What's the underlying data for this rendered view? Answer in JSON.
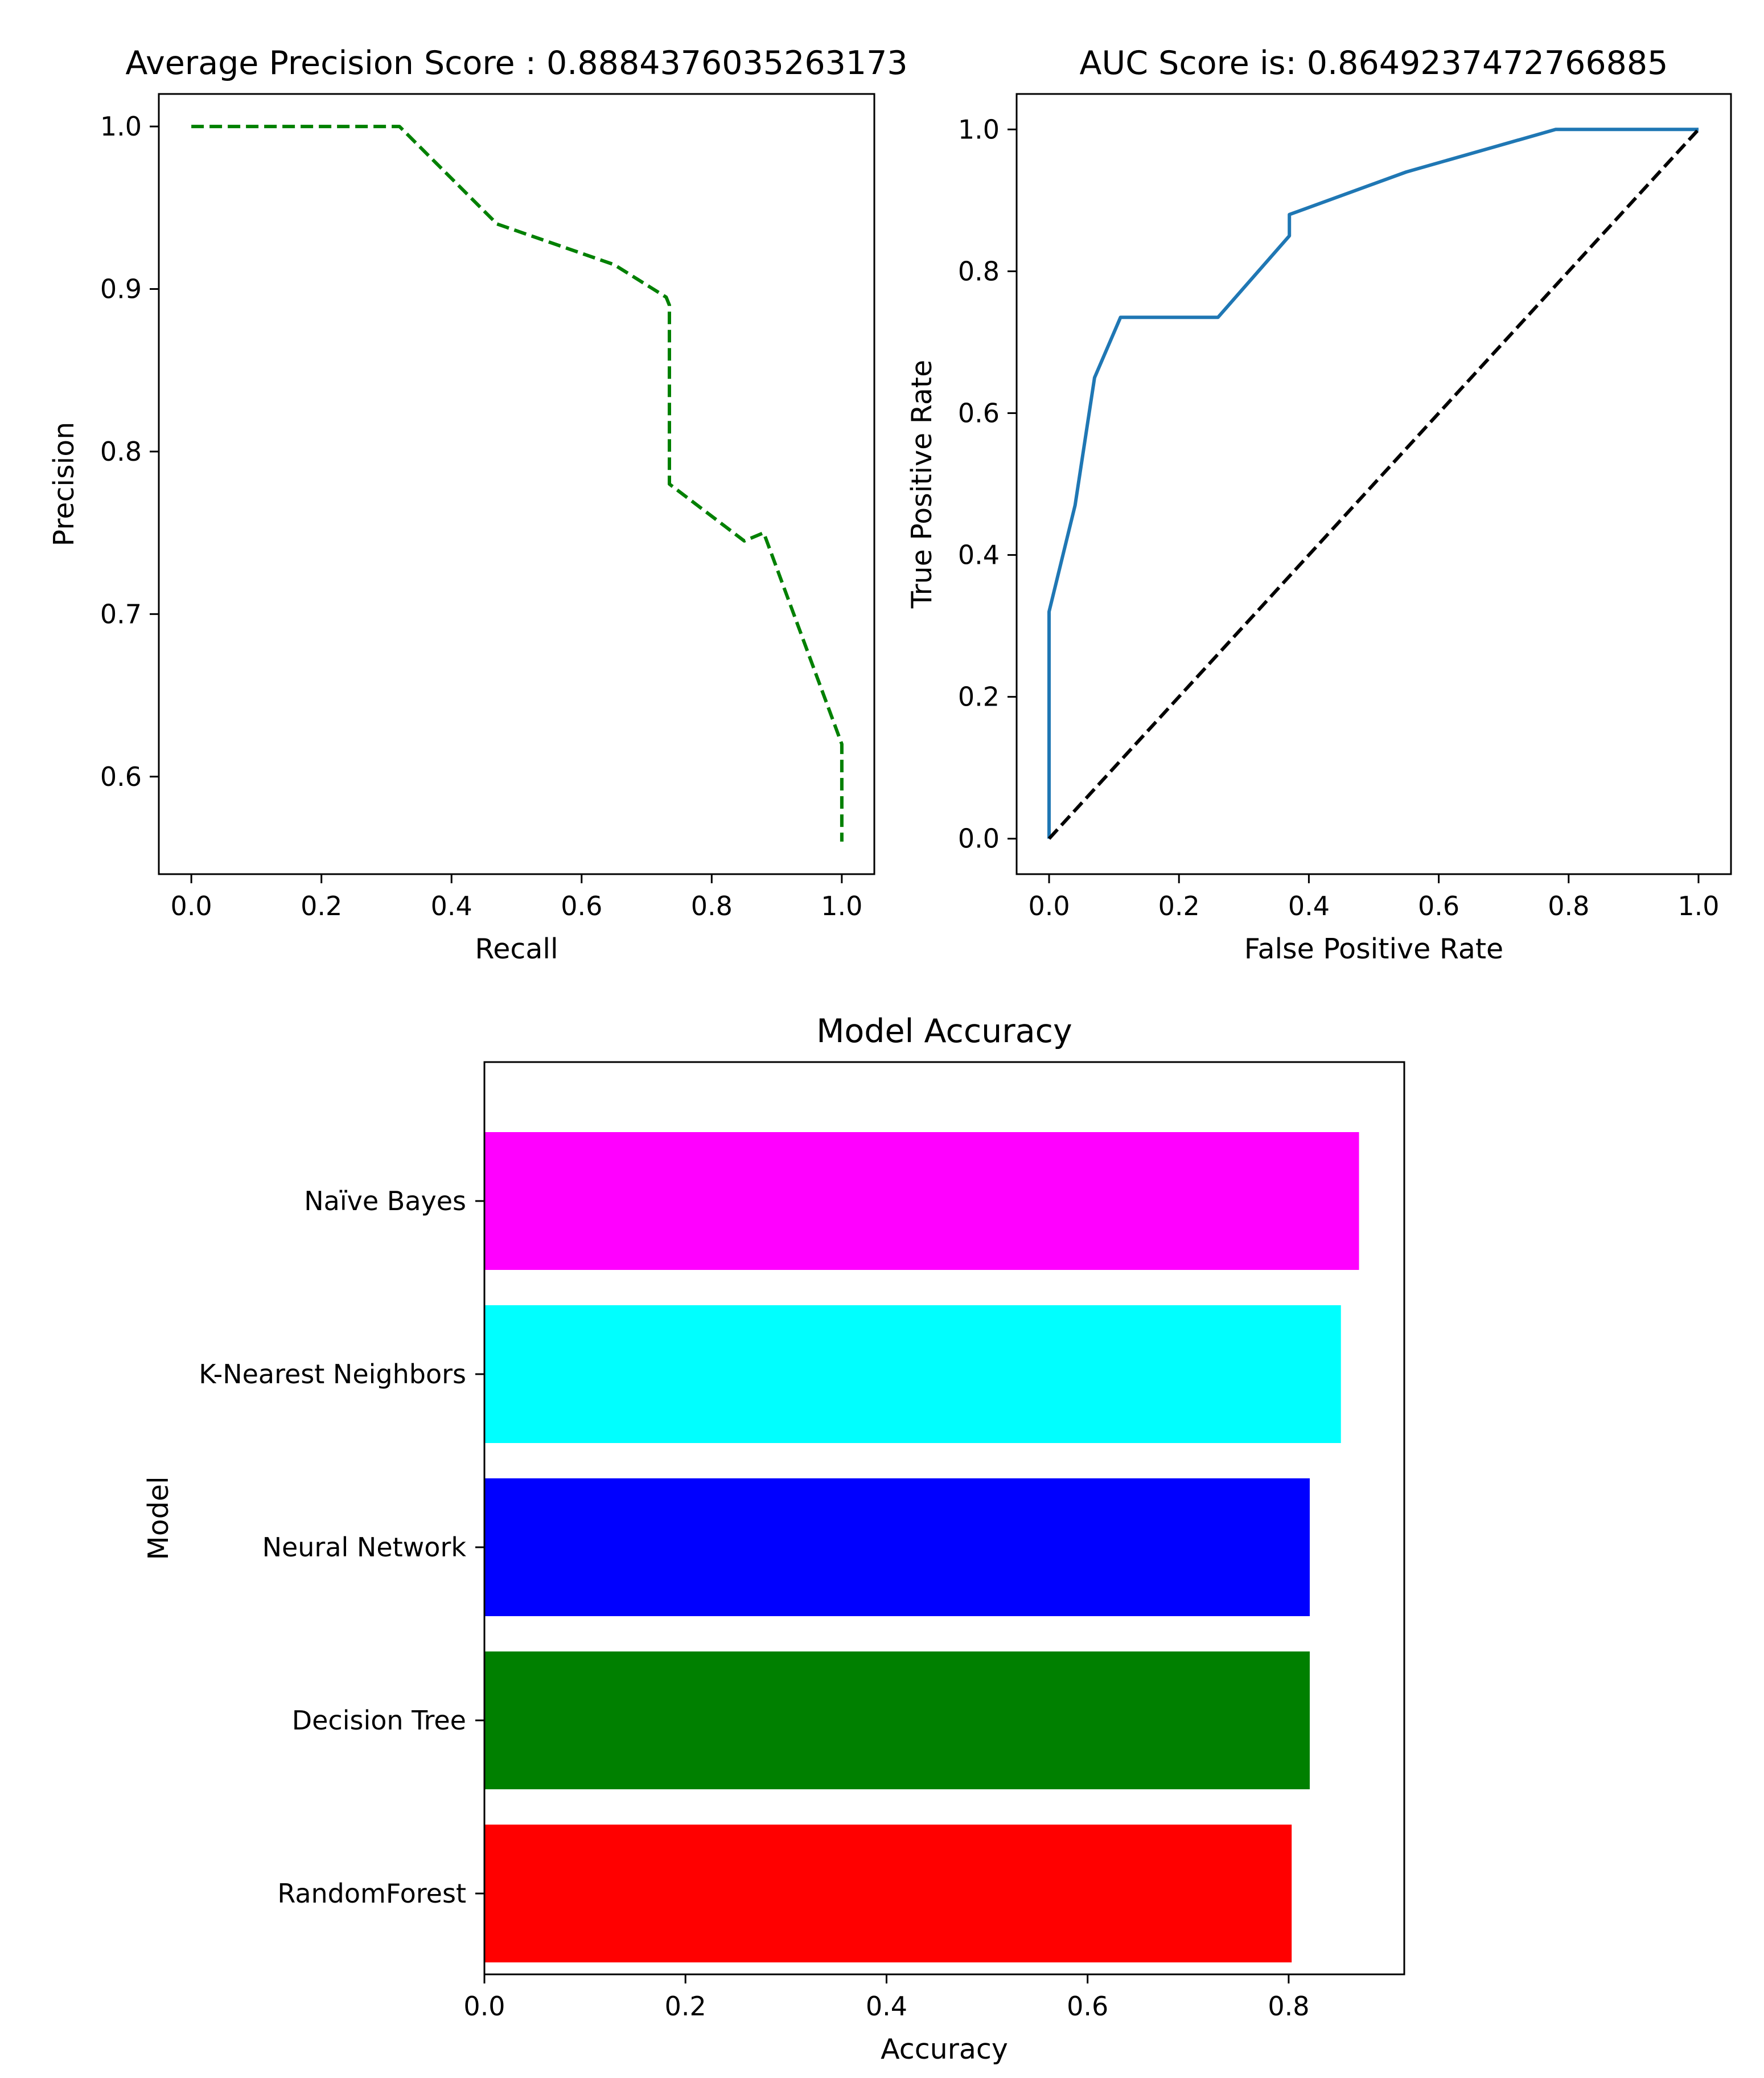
{
  "chart_data": [
    {
      "type": "line",
      "title": "Average Precision Score : 0.8884376035263173",
      "xlabel": "Recall",
      "ylabel": "Precision",
      "xlim": [
        -0.05,
        1.05
      ],
      "ylim": [
        0.54,
        1.02
      ],
      "xticks": [
        0.0,
        0.2,
        0.4,
        0.6,
        0.8,
        1.0
      ],
      "yticks": [
        0.6,
        0.7,
        0.8,
        0.9,
        1.0
      ],
      "grid": false,
      "series": [
        {
          "color": "#008000",
          "linestyle": "dashed",
          "x": [
            0.0,
            0.32,
            0.47,
            0.65,
            0.73,
            0.735,
            0.735,
            0.85,
            0.88,
            1.0,
            1.0
          ],
          "y": [
            1.0,
            1.0,
            0.94,
            0.915,
            0.895,
            0.89,
            0.78,
            0.745,
            0.75,
            0.62,
            0.56
          ]
        }
      ]
    },
    {
      "type": "line",
      "title": "AUC Score is: 0.8649237472766885",
      "xlabel": "False Positive Rate",
      "ylabel": "True Positive Rate",
      "xlim": [
        -0.05,
        1.05
      ],
      "ylim": [
        -0.05,
        1.05
      ],
      "xticks": [
        0.0,
        0.2,
        0.4,
        0.6,
        0.8,
        1.0
      ],
      "yticks": [
        0.0,
        0.2,
        0.4,
        0.6,
        0.8,
        1.0
      ],
      "grid": false,
      "series": [
        {
          "color": "#1f77b4",
          "linestyle": "solid",
          "x": [
            0.0,
            0.0,
            0.04,
            0.07,
            0.11,
            0.26,
            0.37,
            0.37,
            0.55,
            0.78,
            1.0
          ],
          "y": [
            0.0,
            0.32,
            0.47,
            0.65,
            0.735,
            0.735,
            0.85,
            0.88,
            0.94,
            1.0,
            1.0
          ]
        },
        {
          "color": "#000000",
          "linestyle": "dashed",
          "x": [
            0.0,
            1.0
          ],
          "y": [
            0.0,
            1.0
          ]
        }
      ]
    },
    {
      "type": "bar",
      "orientation": "horizontal",
      "title": "Model Accuracy",
      "xlabel": "Accuracy",
      "ylabel": "Model",
      "xlim": [
        0.0,
        0.915
      ],
      "xticks": [
        0.0,
        0.2,
        0.4,
        0.6,
        0.8
      ],
      "grid": false,
      "categories": [
        "RandomForest",
        "Decision Tree",
        "Neural Network",
        "K-Nearest Neighbors",
        "Naïve Bayes"
      ],
      "values": [
        0.803,
        0.821,
        0.821,
        0.852,
        0.87
      ],
      "colors": [
        "#ff0000",
        "#008000",
        "#0000ff",
        "#00ffff",
        "#ff00ff"
      ]
    }
  ]
}
